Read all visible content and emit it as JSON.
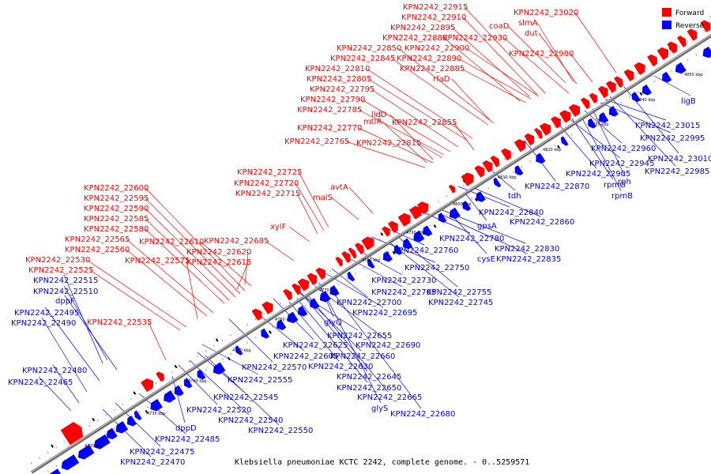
{
  "caption": "Klebsiella pneumoniae KCTC 2242, complete genome. - 0..5259571",
  "legend": [
    {
      "label": "Forward",
      "color": "#ff0000"
    },
    {
      "label": "Reverse",
      "color": "#0000ff"
    }
  ],
  "colors": {
    "forward": "#ff0000",
    "reverse": "#0000ff",
    "axis": "#888888"
  },
  "ticks": [
    "4720 kbp",
    "4730 kbp",
    "4740 kbp",
    "4750 kbp",
    "4760 kbp",
    "4770 kbp",
    "4780 kbp",
    "4790 kbp",
    "4800 kbp",
    "4810 kbp",
    "4820 kbp",
    "4830 kbp",
    "4840 kbp",
    "4850 kbp"
  ],
  "forward_labels": [
    "KPN2242_22915",
    "KPN2242_22910",
    "KPN2242_22895",
    "KPN2242_22880",
    "KPN2242_22930",
    "KPN2242_22850",
    "KPN2242_22900",
    "KPN2242_22845",
    "KPN2242_22890",
    "KPN2242_22810",
    "KPN2242_22885",
    "KPN2242_22805",
    "KPN2242_22795",
    "KPN2242_22790",
    "KPN2242_22785",
    "KPN2242_22770",
    "KPN2242_22765",
    "KPN2242_22855",
    "KPN2242_22815",
    "KPN2242_22725",
    "KPN2242_22720",
    "KPN2242_22715",
    "KPN2242_22600",
    "KPN2242_22595",
    "KPN2242_22590",
    "KPN2242_22585",
    "KPN2242_22580",
    "KPN2242_22565",
    "KPN2242_22560",
    "KPN2242_22610",
    "KPN2242_22685",
    "KPN2242_22620",
    "KPN2242_22615",
    "KPN2242_22530",
    "KPN2242_22575",
    "KPN2242_22525",
    "KPN2242_22535",
    "KPN2242_23020",
    "KPN2242_22980",
    "coaD",
    "slmA",
    "dut",
    "rfaD",
    "lldD",
    "mtlR",
    "avtA",
    "malS",
    "xylF"
  ],
  "reverse_labels": [
    "ligB",
    "KPN2242_23015",
    "KPN2242_22995",
    "KPN2242_22960",
    "KPN2242_23010",
    "KPN2242_22945",
    "KPN2242_22985",
    "KPN2242_22905",
    "rpmG",
    "rph",
    "KPN2242_22870",
    "rpmB",
    "tdh",
    "KPN2242_22840",
    "KPN2242_22860",
    "gpsA",
    "KPN2242_22780",
    "KPN2242_22830",
    "KPN2242_22760",
    "cysE",
    "KPN2242_22835",
    "KPN2242_22750",
    "KPN2242_22730",
    "KPN2242_22755",
    "KPN2242_22705",
    "KPN2242_22745",
    "KPN2242_22700",
    "KPN2242_22695",
    "glyQ",
    "KPN2242_22655",
    "KPN2242_22690",
    "KPN2242_22625",
    "KPN2242_22660",
    "KPN2242_22605",
    "KPN2242_22630",
    "KPN2242_22570",
    "KPN2242_22645",
    "KPN2242_22555",
    "KPN2242_22650",
    "KPN2242_22665",
    "glyS",
    "KPN2242_22680",
    "KPN2242_22545",
    "KPN2242_22520",
    "KPN2242_22540",
    "KPN2242_22550",
    "dppD",
    "KPN2242_22485",
    "KPN2242_22475",
    "KPN2242_22470",
    "KPN2242_22515",
    "KPN2242_22510",
    "dppF",
    "KPN2242_22495",
    "KPN2242_22490",
    "KPN2242_22480",
    "KPN2242_22465"
  ]
}
